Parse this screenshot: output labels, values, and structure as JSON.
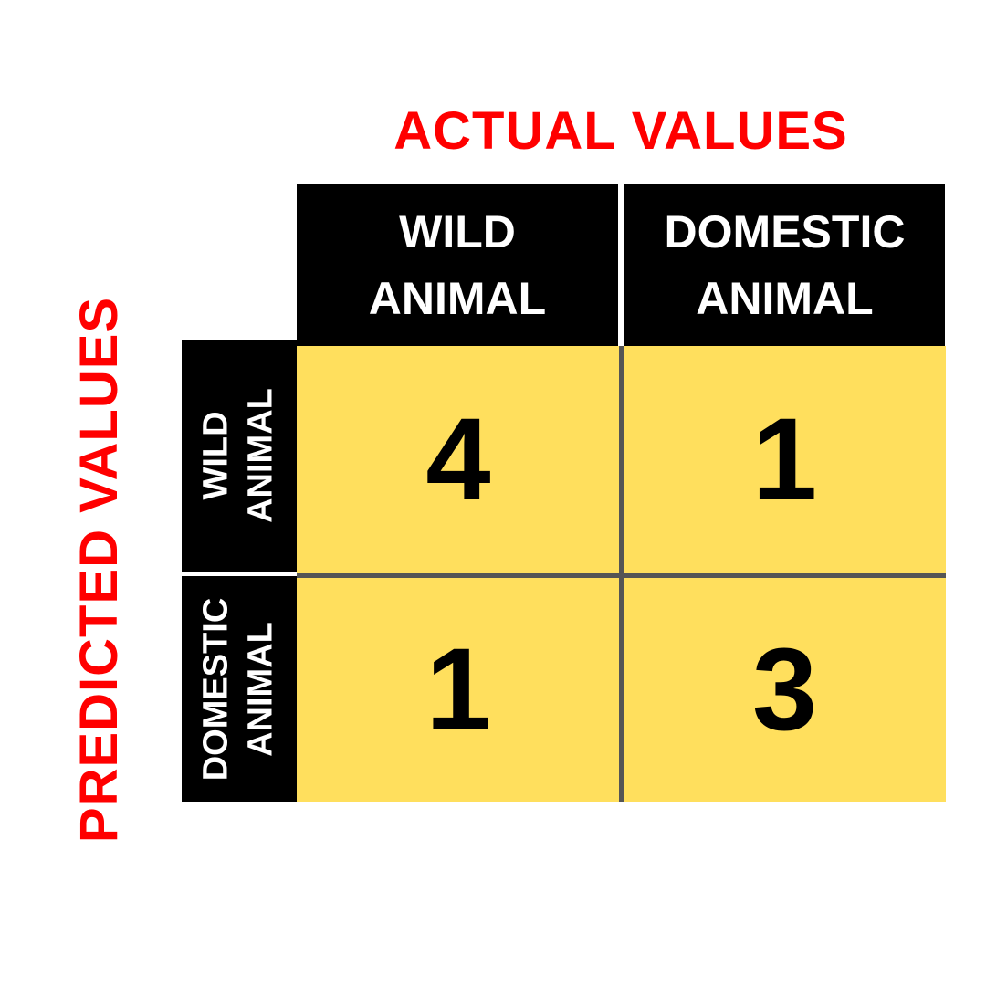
{
  "axis": {
    "actual_label": "ACTUAL VALUES",
    "predicted_label": "PREDICTED VALUES"
  },
  "columns": [
    {
      "line1": "WILD",
      "line2": "ANIMAL"
    },
    {
      "line1": "DOMESTIC",
      "line2": "ANIMAL"
    }
  ],
  "rows": [
    {
      "line1": "WILD",
      "line2": "ANIMAL"
    },
    {
      "line1": "DOMESTIC",
      "line2": "ANIMAL"
    }
  ],
  "matrix": [
    [
      "4",
      "1"
    ],
    [
      "1",
      "3"
    ]
  ],
  "colors": {
    "axis_title": "#ff0000",
    "header_bg": "#000000",
    "header_text": "#ffffff",
    "cell_bg": "#ffdf5d",
    "grid_line": "#555555"
  }
}
